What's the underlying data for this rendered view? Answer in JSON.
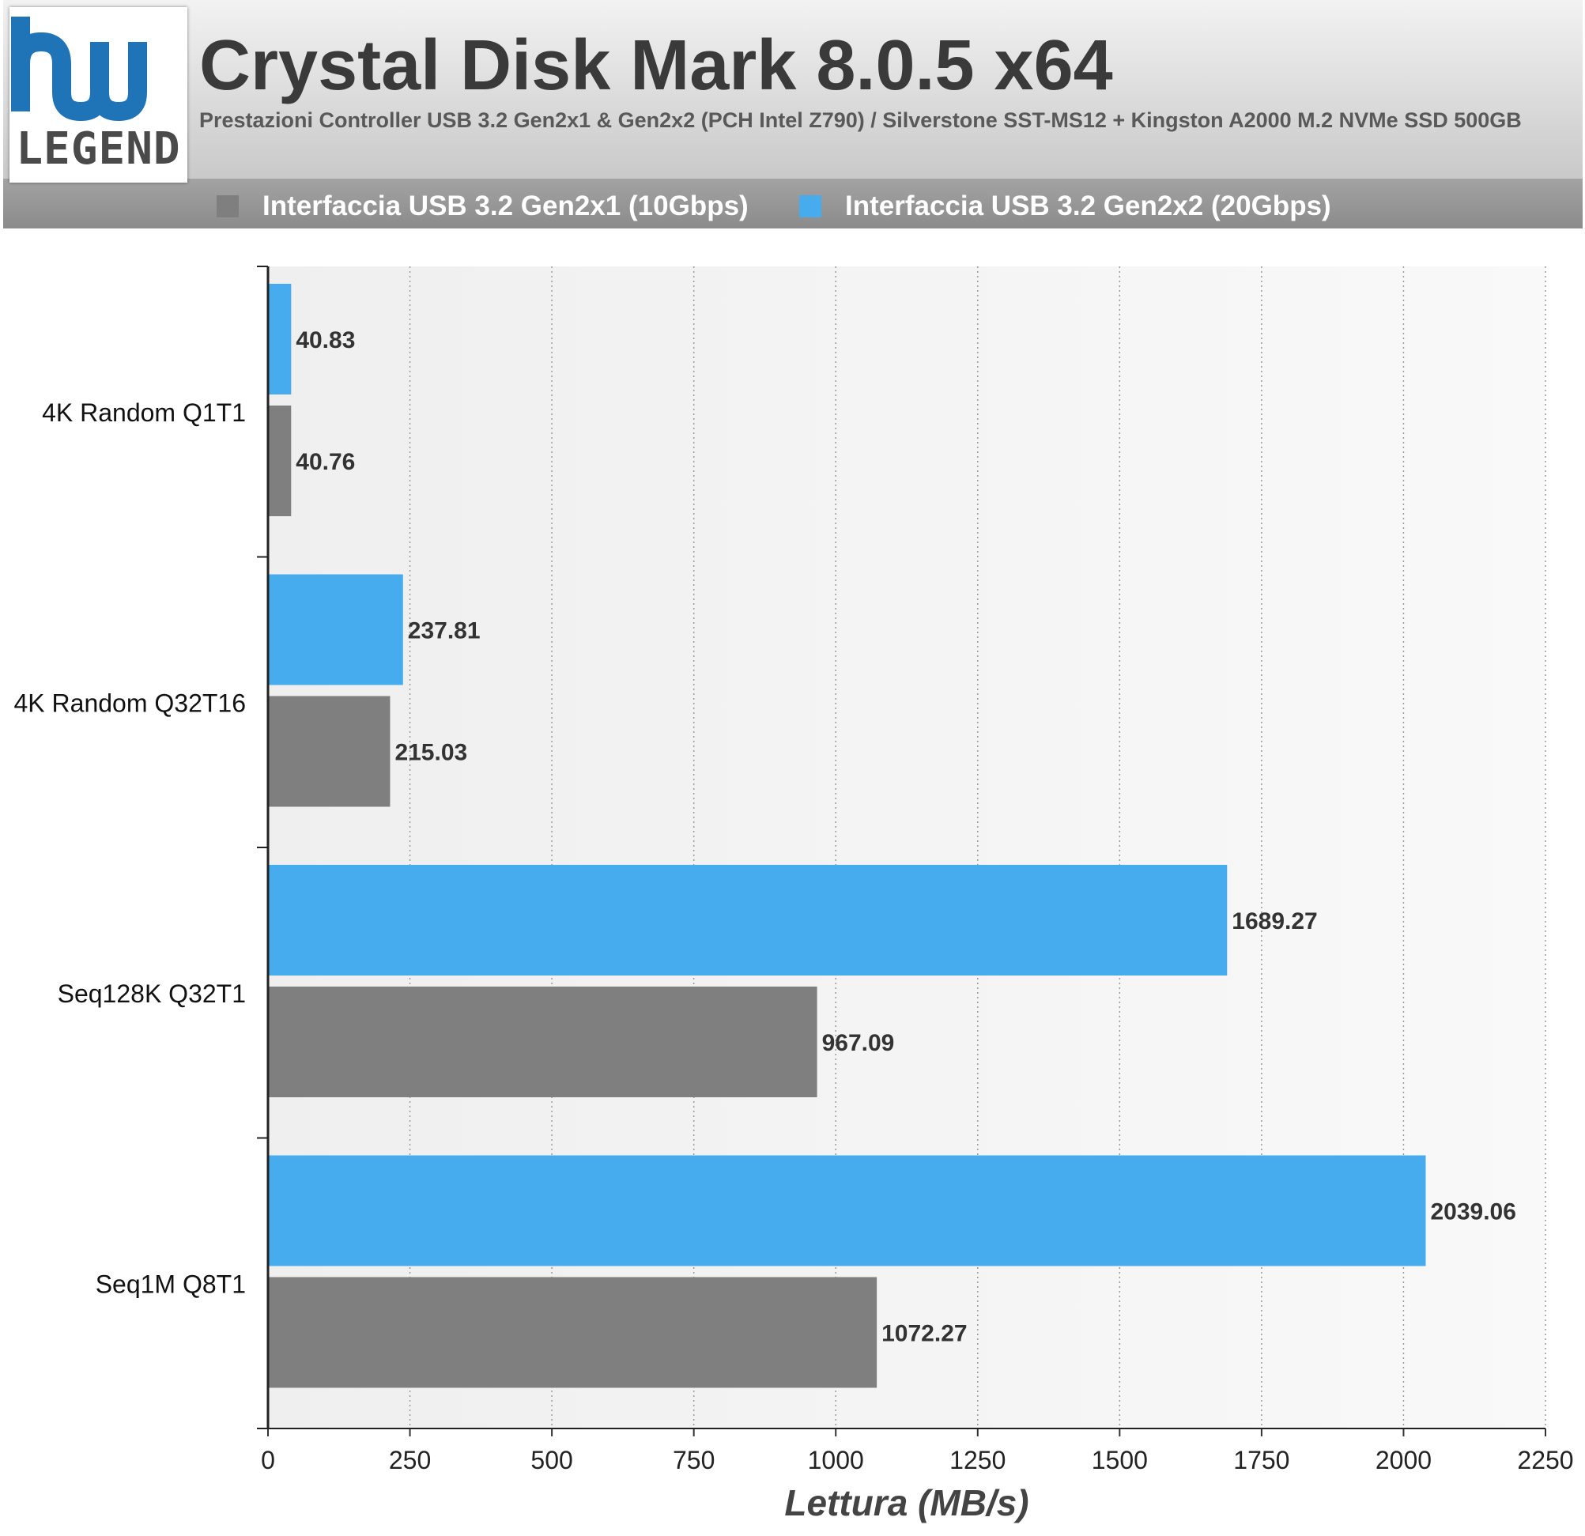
{
  "header": {
    "logo_text": "LEGEND",
    "title": "Crystal Disk Mark 8.0.5 x64",
    "subtitle": "Prestazioni Controller USB 3.2 Gen2x1 & Gen2x2 (PCH Intel Z790) / Silverstone SST-MS12 + Kingston A2000 M.2 NVMe SSD 500GB"
  },
  "colors": {
    "gen2x1": "#7f7f7f",
    "gen2x2": "#46acee",
    "logo_blue": "#1f73b7"
  },
  "chart_data": {
    "type": "bar",
    "orientation": "horizontal",
    "title": "Crystal Disk Mark 8.0.5 x64",
    "subtitle": "Prestazioni Controller USB 3.2 Gen2x1 & Gen2x2 (PCH Intel Z790) / Silverstone SST-MS12 + Kingston A2000 M.2 NVMe SSD 500GB",
    "categories": [
      "4K Random Q1T1",
      "4K Random Q32T16",
      "Seq128K Q32T1",
      "Seq1M Q8T1"
    ],
    "series": [
      {
        "name": "Interfaccia USB 3.2 Gen2x1 (10Gbps)",
        "color": "#7f7f7f",
        "values": [
          40.76,
          215.03,
          967.09,
          1072.27
        ],
        "labels": [
          "40.76",
          "215.03",
          "967.09",
          "1072.27"
        ]
      },
      {
        "name": "Interfaccia USB 3.2 Gen2x2 (20Gbps)",
        "color": "#46acee",
        "values": [
          40.83,
          237.81,
          1689.27,
          2039.06
        ],
        "labels": [
          "40.83",
          "237.81",
          "1689.27",
          "2039.06"
        ]
      }
    ],
    "xlabel": "Lettura (MB/s)",
    "ylabel": "",
    "xlim": [
      0,
      2250
    ],
    "xticks": [
      0,
      250,
      500,
      750,
      1000,
      1250,
      1500,
      1750,
      2000,
      2250
    ],
    "xtick_labels": [
      "0",
      "250",
      "500",
      "750",
      "1000",
      "1250",
      "1500",
      "1750",
      "2000",
      "2250"
    ],
    "grid": "vertical dotted",
    "legend_position": "top"
  }
}
